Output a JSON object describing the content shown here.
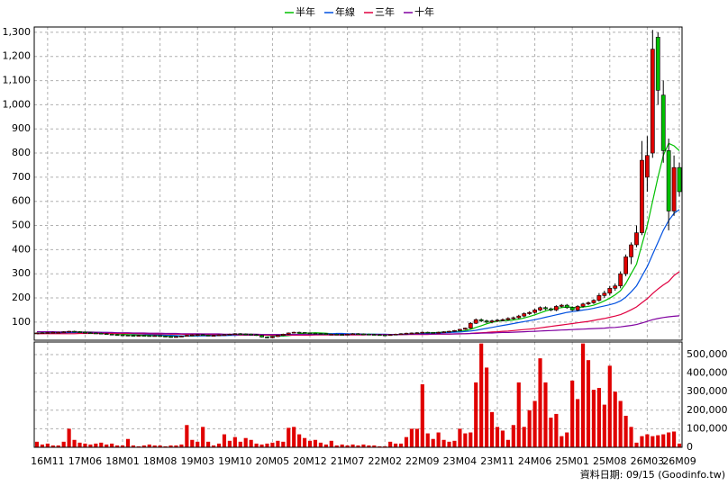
{
  "chart_data": [
    {
      "type": "candlestick",
      "categories": [
        null,
        null,
        "16M11",
        null,
        null,
        null,
        null,
        null,
        null,
        "17M06",
        null,
        null,
        null,
        null,
        null,
        null,
        "18M01",
        null,
        null,
        null,
        null,
        null,
        null,
        "18M08",
        null,
        null,
        null,
        null,
        null,
        null,
        "19M03",
        null,
        null,
        null,
        null,
        null,
        null,
        "19M10",
        null,
        null,
        null,
        null,
        null,
        null,
        "20M05",
        null,
        null,
        null,
        null,
        null,
        null,
        "20M12",
        null,
        null,
        null,
        null,
        null,
        null,
        "21M07",
        null,
        null,
        null,
        null,
        null,
        null,
        "22M02",
        null,
        null,
        null,
        null,
        null,
        null,
        "22M09",
        null,
        null,
        null,
        null,
        null,
        null,
        "23M04",
        null,
        null,
        null,
        null,
        null,
        null,
        "23M11",
        null,
        null,
        null,
        null,
        null,
        null,
        "24M06",
        null,
        null,
        null,
        null,
        null,
        null,
        "25M01",
        null,
        null,
        null,
        null,
        null,
        null,
        "25M08",
        null,
        null,
        null,
        null,
        null,
        null,
        "26M03",
        null,
        null,
        null,
        null,
        null,
        "26M09"
      ],
      "open": [
        54,
        55,
        56,
        57,
        58,
        58,
        60,
        62,
        60,
        58,
        56,
        55,
        54,
        52,
        50,
        48,
        47,
        46,
        45,
        44,
        45,
        44,
        43,
        44,
        42,
        40,
        38,
        40,
        42,
        45,
        47,
        48,
        46,
        44,
        45,
        47,
        48,
        50,
        52,
        51,
        50,
        48,
        45,
        38,
        35,
        40,
        45,
        50,
        55,
        58,
        57,
        55,
        54,
        53,
        52,
        50,
        50,
        49,
        48,
        50,
        52,
        51,
        50,
        49,
        48,
        47,
        46,
        48,
        50,
        52,
        54,
        55,
        56,
        58,
        57,
        56,
        58,
        60,
        62,
        65,
        70,
        75,
        95,
        110,
        105,
        100,
        105,
        108,
        110,
        115,
        118,
        125,
        135,
        140,
        150,
        160,
        155,
        150,
        165,
        170,
        160,
        150,
        165,
        175,
        180,
        190,
        210,
        220,
        240,
        250,
        300,
        370,
        420,
        470,
        700,
        800,
        1280,
        1040,
        810,
        560,
        740
      ],
      "high": [
        57,
        58,
        59,
        60,
        60,
        62,
        64,
        64,
        62,
        60,
        58,
        57,
        56,
        54,
        52,
        50,
        49,
        48,
        47,
        47,
        47,
        46,
        46,
        46,
        44,
        42,
        42,
        44,
        47,
        49,
        50,
        50,
        48,
        47,
        49,
        50,
        52,
        54,
        54,
        53,
        52,
        50,
        47,
        40,
        42,
        47,
        52,
        57,
        60,
        60,
        59,
        57,
        56,
        55,
        54,
        52,
        52,
        51,
        52,
        54,
        54,
        53,
        52,
        51,
        50,
        49,
        50,
        52,
        54,
        56,
        57,
        58,
        60,
        60,
        59,
        60,
        62,
        64,
        67,
        72,
        77,
        100,
        115,
        115,
        110,
        110,
        113,
        115,
        120,
        123,
        130,
        140,
        145,
        155,
        165,
        165,
        160,
        170,
        175,
        175,
        165,
        170,
        180,
        185,
        195,
        220,
        230,
        250,
        260,
        310,
        380,
        430,
        500,
        850,
        870,
        1310,
        1300,
        1100,
        860,
        790,
        760
      ],
      "low": [
        52,
        53,
        54,
        55,
        56,
        56,
        58,
        58,
        56,
        54,
        53,
        52,
        50,
        48,
        46,
        45,
        44,
        43,
        42,
        42,
        42,
        41,
        41,
        40,
        38,
        36,
        36,
        38,
        40,
        43,
        45,
        44,
        42,
        42,
        43,
        45,
        46,
        48,
        49,
        48,
        46,
        43,
        36,
        33,
        33,
        38,
        43,
        48,
        53,
        55,
        53,
        52,
        51,
        50,
        48,
        48,
        47,
        46,
        46,
        48,
        49,
        48,
        47,
        46,
        45,
        44,
        44,
        46,
        48,
        50,
        52,
        53,
        54,
        55,
        54,
        54,
        56,
        58,
        60,
        63,
        68,
        72,
        92,
        100,
        95,
        95,
        100,
        103,
        105,
        110,
        113,
        120,
        130,
        135,
        145,
        150,
        145,
        145,
        160,
        155,
        145,
        145,
        160,
        170,
        175,
        185,
        200,
        210,
        230,
        240,
        290,
        340,
        410,
        460,
        640,
        780,
        1000,
        760,
        480,
        540,
        620
      ],
      "close": [
        55,
        56,
        57,
        58,
        58,
        60,
        62,
        60,
        58,
        56,
        55,
        54,
        52,
        50,
        48,
        47,
        46,
        45,
        44,
        45,
        44,
        43,
        44,
        42,
        40,
        38,
        40,
        42,
        45,
        47,
        48,
        46,
        44,
        45,
        47,
        48,
        50,
        52,
        51,
        50,
        48,
        45,
        38,
        35,
        40,
        45,
        50,
        55,
        58,
        57,
        55,
        54,
        53,
        52,
        50,
        50,
        49,
        48,
        50,
        52,
        51,
        50,
        49,
        48,
        47,
        46,
        48,
        50,
        52,
        54,
        55,
        56,
        58,
        57,
        56,
        58,
        60,
        62,
        65,
        70,
        75,
        95,
        110,
        105,
        100,
        105,
        108,
        110,
        115,
        118,
        125,
        135,
        140,
        150,
        160,
        155,
        150,
        165,
        170,
        160,
        150,
        165,
        175,
        180,
        190,
        210,
        220,
        240,
        250,
        300,
        370,
        420,
        470,
        770,
        790,
        1230,
        1060,
        810,
        560,
        740,
        640
      ],
      "up_color": "#e00000",
      "down_color": "#00c000",
      "series": [
        {
          "name": "半年",
          "color": "#00c000",
          "values": [
            54,
            55,
            55,
            56,
            57,
            57,
            58,
            59,
            59,
            59,
            59,
            58,
            57,
            55,
            53,
            51,
            50,
            48,
            47,
            46,
            45,
            45,
            44,
            44,
            43,
            42,
            41,
            41,
            42,
            42,
            43,
            44,
            45,
            46,
            46,
            46,
            47,
            48,
            49,
            50,
            50,
            49,
            47,
            45,
            43,
            42,
            42,
            44,
            47,
            51,
            54,
            55,
            56,
            55,
            54,
            52,
            51,
            50,
            50,
            50,
            50,
            50,
            50,
            50,
            49,
            48,
            48,
            48,
            48,
            49,
            51,
            52,
            54,
            55,
            56,
            57,
            58,
            59,
            60,
            62,
            64,
            70,
            78,
            85,
            93,
            99,
            104,
            106,
            107,
            109,
            112,
            117,
            123,
            130,
            138,
            146,
            152,
            157,
            160,
            163,
            161,
            160,
            162,
            165,
            170,
            178,
            188,
            199,
            213,
            230,
            260,
            300,
            340,
            420,
            500,
            600,
            700,
            790,
            840,
            830,
            810
          ]
        },
        {
          "name": "年線",
          "color": "#0050e0",
          "values": [
            53,
            53,
            54,
            54,
            55,
            55,
            56,
            56,
            57,
            57,
            57,
            57,
            57,
            57,
            56,
            55,
            54,
            53,
            52,
            51,
            50,
            49,
            48,
            47,
            46,
            45,
            44,
            43,
            43,
            43,
            43,
            43,
            43,
            44,
            44,
            44,
            45,
            45,
            46,
            46,
            46,
            46,
            46,
            46,
            45,
            45,
            45,
            46,
            46,
            47,
            48,
            49,
            50,
            50,
            51,
            52,
            53,
            53,
            52,
            51,
            51,
            50,
            50,
            50,
            50,
            50,
            49,
            49,
            49,
            49,
            50,
            51,
            52,
            53,
            54,
            55,
            56,
            57,
            58,
            59,
            61,
            63,
            66,
            70,
            74,
            78,
            82,
            86,
            90,
            94,
            98,
            102,
            106,
            110,
            115,
            120,
            125,
            130,
            135,
            140,
            143,
            146,
            150,
            153,
            157,
            162,
            167,
            172,
            178,
            188,
            203,
            225,
            250,
            290,
            330,
            380,
            430,
            480,
            520,
            550,
            566
          ]
        },
        {
          "name": "三年",
          "color": "#e00040",
          "values": [
            52,
            52,
            52,
            52,
            52,
            52,
            52,
            52,
            53,
            53,
            53,
            53,
            53,
            53,
            53,
            53,
            53,
            53,
            53,
            52,
            52,
            52,
            51,
            51,
            51,
            50,
            50,
            50,
            49,
            49,
            49,
            49,
            48,
            48,
            48,
            48,
            48,
            48,
            47,
            47,
            47,
            47,
            46,
            46,
            46,
            46,
            46,
            46,
            46,
            46,
            46,
            46,
            47,
            47,
            47,
            47,
            47,
            47,
            47,
            47,
            47,
            47,
            48,
            48,
            48,
            48,
            48,
            48,
            48,
            49,
            49,
            49,
            49,
            49,
            50,
            50,
            50,
            50,
            51,
            51,
            52,
            53,
            55,
            56,
            57,
            59,
            60,
            62,
            63,
            65,
            67,
            69,
            71,
            73,
            76,
            79,
            82,
            85,
            88,
            91,
            94,
            97,
            100,
            103,
            107,
            111,
            115,
            120,
            125,
            131,
            140,
            151,
            163,
            180,
            197,
            218,
            237,
            254,
            268,
            293,
            309
          ]
        },
        {
          "name": "十年",
          "color": "#8000a0",
          "values": [
            60,
            60,
            60,
            60,
            59,
            59,
            59,
            59,
            58,
            58,
            58,
            58,
            57,
            57,
            57,
            56,
            56,
            56,
            55,
            55,
            55,
            54,
            54,
            54,
            53,
            53,
            53,
            52,
            52,
            52,
            52,
            51,
            51,
            51,
            51,
            50,
            50,
            50,
            50,
            50,
            50,
            50,
            49,
            49,
            49,
            49,
            49,
            49,
            49,
            49,
            49,
            49,
            49,
            49,
            49,
            49,
            49,
            49,
            49,
            49,
            49,
            49,
            49,
            49,
            49,
            49,
            49,
            49,
            49,
            50,
            50,
            50,
            50,
            50,
            50,
            51,
            51,
            51,
            51,
            52,
            52,
            53,
            53,
            54,
            55,
            55,
            56,
            57,
            57,
            58,
            59,
            60,
            61,
            62,
            63,
            64,
            65,
            66,
            67,
            68,
            69,
            70,
            71,
            72,
            73,
            74,
            75,
            77,
            78,
            80,
            83,
            86,
            90,
            96,
            103,
            110,
            115,
            119,
            122,
            124,
            126
          ]
        }
      ],
      "ylim": [
        25,
        1322
      ],
      "yticks": [
        100,
        200,
        300,
        400,
        500,
        600,
        700,
        800,
        900,
        {
          "value": 1000,
          "label": "1,000"
        },
        {
          "value": 1100,
          "label": "1,100"
        },
        {
          "value": 1200,
          "label": "1,200"
        },
        {
          "value": 1300,
          "label": "1,300"
        }
      ],
      "grid": true,
      "legend": "top"
    },
    {
      "type": "bar",
      "values": [
        30000,
        15000,
        20000,
        10000,
        10000,
        30000,
        100000,
        40000,
        25000,
        20000,
        15000,
        20000,
        25000,
        15000,
        20000,
        10000,
        10000,
        45000,
        10000,
        5000,
        10000,
        15000,
        10000,
        10000,
        5000,
        10000,
        10000,
        15000,
        120000,
        40000,
        30000,
        110000,
        30000,
        10000,
        20000,
        70000,
        35000,
        55000,
        30000,
        50000,
        40000,
        20000,
        15000,
        20000,
        25000,
        35000,
        30000,
        105000,
        110000,
        70000,
        50000,
        35000,
        40000,
        25000,
        15000,
        35000,
        10000,
        15000,
        10000,
        15000,
        10000,
        15000,
        10000,
        10000,
        5000,
        5000,
        30000,
        20000,
        20000,
        55000,
        100000,
        100000,
        340000,
        75000,
        45000,
        80000,
        40000,
        30000,
        35000,
        100000,
        75000,
        80000,
        350000,
        560000,
        430000,
        190000,
        110000,
        90000,
        40000,
        120000,
        350000,
        110000,
        200000,
        250000,
        480000,
        350000,
        160000,
        180000,
        60000,
        80000,
        360000,
        260000,
        560000,
        470000,
        310000,
        320000,
        230000,
        440000,
        300000,
        250000,
        170000,
        110000,
        25000,
        60000,
        70000,
        60000,
        65000,
        70000,
        80000,
        85000,
        20000
      ],
      "color": "#e00000",
      "ylim": [
        0,
        568000
      ],
      "yticks": [
        0,
        {
          "value": 100000,
          "label": "100,000"
        },
        {
          "value": 200000,
          "label": "200,000"
        },
        {
          "value": 300000,
          "label": "300,000"
        },
        {
          "value": 400000,
          "label": "400,000"
        },
        {
          "value": 500000,
          "label": "500,000"
        }
      ],
      "grid": true
    }
  ],
  "source": "資料日期: 09/15 (Goodinfo.tw)"
}
